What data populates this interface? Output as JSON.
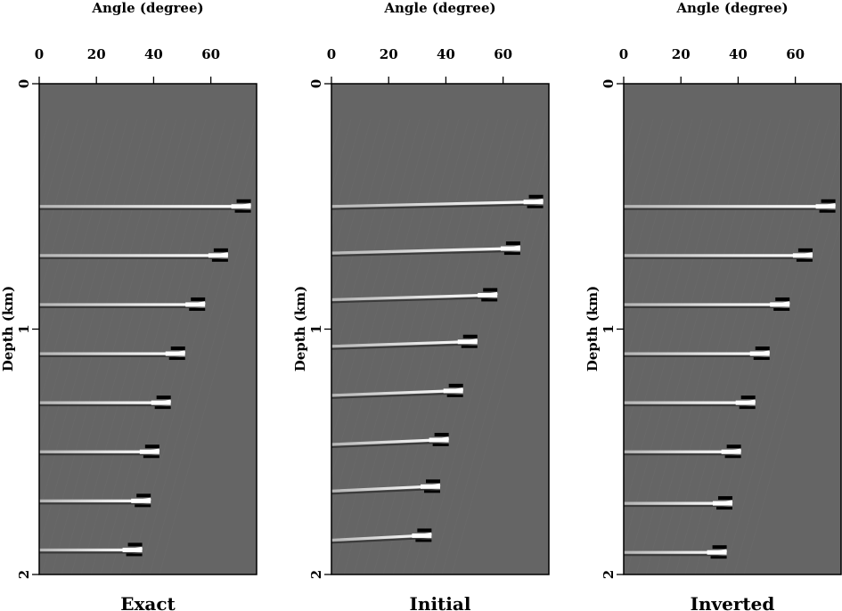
{
  "chart_data": [
    {
      "type": "heatmap",
      "title": "Exact",
      "xlabel": "Angle (degree)",
      "ylabel": "Depth (km)",
      "xlim": [
        0,
        76
      ],
      "ylim": [
        2,
        0
      ],
      "x_ticks": [
        "0",
        "20",
        "40",
        "60"
      ],
      "y_ticks": [
        "0",
        "1",
        "2"
      ],
      "reflectors": [
        {
          "depth": 0.5,
          "max_angle": 74
        },
        {
          "depth": 0.7,
          "max_angle": 66
        },
        {
          "depth": 0.9,
          "max_angle": 58
        },
        {
          "depth": 1.1,
          "max_angle": 51
        },
        {
          "depth": 1.3,
          "max_angle": 46
        },
        {
          "depth": 1.5,
          "max_angle": 42
        },
        {
          "depth": 1.7,
          "max_angle": 39
        },
        {
          "depth": 1.9,
          "max_angle": 36
        }
      ]
    },
    {
      "type": "heatmap",
      "title": "Initial",
      "xlabel": "Angle (degree)",
      "ylabel": "Depth (km)",
      "xlim": [
        0,
        76
      ],
      "ylim": [
        2,
        0
      ],
      "x_ticks": [
        "0",
        "20",
        "40",
        "60"
      ],
      "y_ticks": [
        "0",
        "1",
        "2"
      ],
      "reflectors": [
        {
          "depth": 0.5,
          "max_angle": 74
        },
        {
          "depth": 0.69,
          "max_angle": 66
        },
        {
          "depth": 0.88,
          "max_angle": 58
        },
        {
          "depth": 1.07,
          "max_angle": 51
        },
        {
          "depth": 1.27,
          "max_angle": 46
        },
        {
          "depth": 1.47,
          "max_angle": 41
        },
        {
          "depth": 1.66,
          "max_angle": 38
        },
        {
          "depth": 1.86,
          "max_angle": 35
        }
      ]
    },
    {
      "type": "heatmap",
      "title": "Inverted",
      "xlabel": "Angle (degree)",
      "ylabel": "Depth (km)",
      "xlim": [
        0,
        76
      ],
      "ylim": [
        2,
        0
      ],
      "x_ticks": [
        "0",
        "20",
        "40",
        "60"
      ],
      "y_ticks": [
        "0",
        "1",
        "2"
      ],
      "reflectors": [
        {
          "depth": 0.5,
          "max_angle": 74
        },
        {
          "depth": 0.7,
          "max_angle": 66
        },
        {
          "depth": 0.9,
          "max_angle": 58
        },
        {
          "depth": 1.1,
          "max_angle": 51
        },
        {
          "depth": 1.3,
          "max_angle": 46
        },
        {
          "depth": 1.5,
          "max_angle": 41
        },
        {
          "depth": 1.71,
          "max_angle": 38
        },
        {
          "depth": 1.91,
          "max_angle": 36
        }
      ]
    }
  ],
  "colors": {
    "background": "#656565",
    "bright": "#ffffff",
    "dark": "#000000"
  }
}
